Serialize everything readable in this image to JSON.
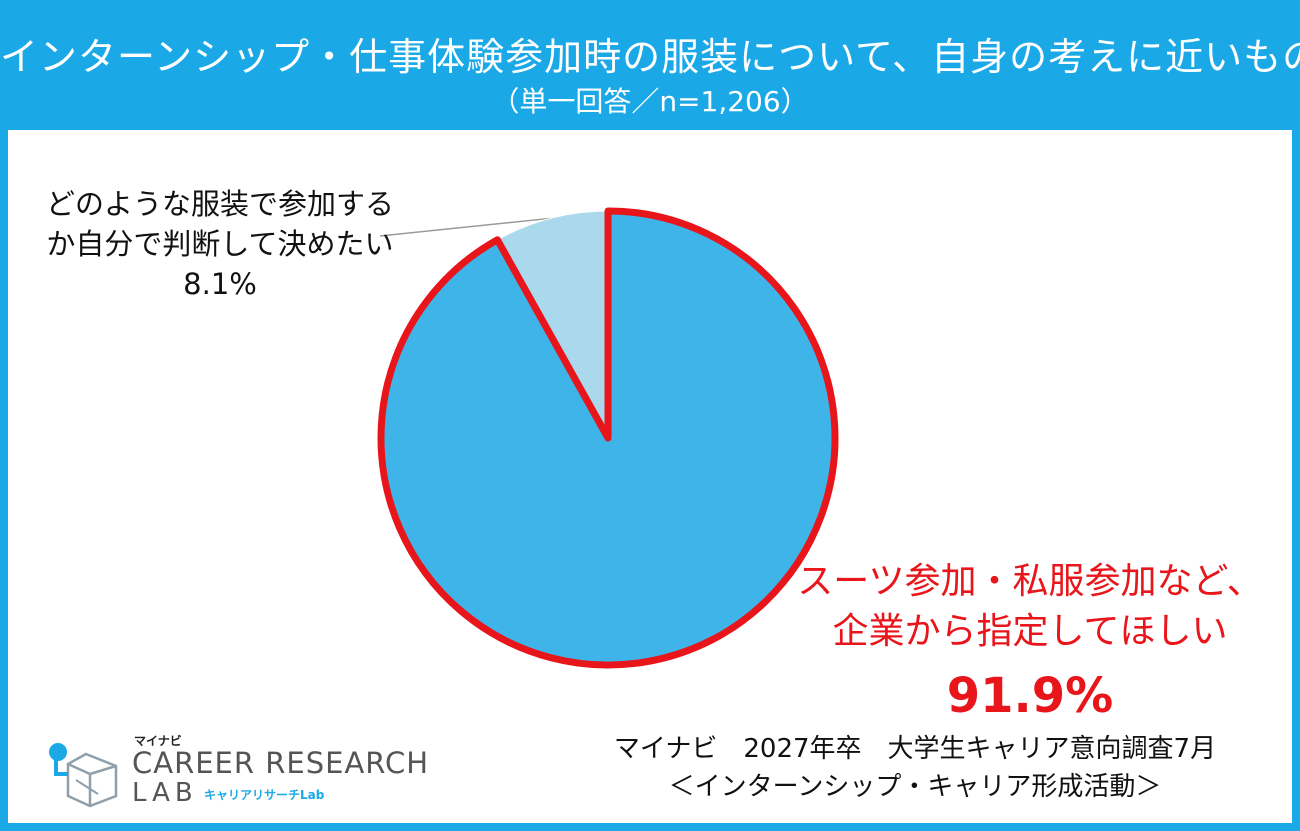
{
  "header": {
    "title": "インターンシップ・仕事体験参加時の服装について、自身の考えに近いもの",
    "subtitle": "（単一回答／n=1,206）"
  },
  "labels": {
    "small": {
      "line1": "どのような服装で参加する",
      "line2": "か自分で判断して決めたい",
      "pct": "8.1%"
    },
    "big": {
      "line1": "スーツ参加・私服参加など、",
      "line2": "企業から指定してほしい",
      "pct": "91.9%"
    }
  },
  "source": {
    "line1": "マイナビ　2027年卒　大学生キャリア意向調査7月",
    "line2": "＜インターンシップ・キャリア形成活動＞"
  },
  "logo": {
    "brand": "マイナビ",
    "line1": "CAREER RESEARCH",
    "line2": "LAB",
    "sub": "キャリアリサーチLab"
  },
  "colors": {
    "header_bg": "#1aa9e6",
    "highlight": "#e8151b",
    "main_slice": "#3eb4e8",
    "minor_slice": "#aad8ec"
  },
  "chart_data": {
    "type": "pie",
    "slices": [
      {
        "label": "スーツ参加・私服参加など、企業から指定してほしい",
        "value": 91.9,
        "color": "#3eb4e8",
        "highlighted": true
      },
      {
        "label": "どのような服装で参加するか自分で判断して決めたい",
        "value": 8.1,
        "color": "#aad8ec",
        "highlighted": false
      }
    ],
    "start": "12 o'clock",
    "direction": "clockwise"
  }
}
